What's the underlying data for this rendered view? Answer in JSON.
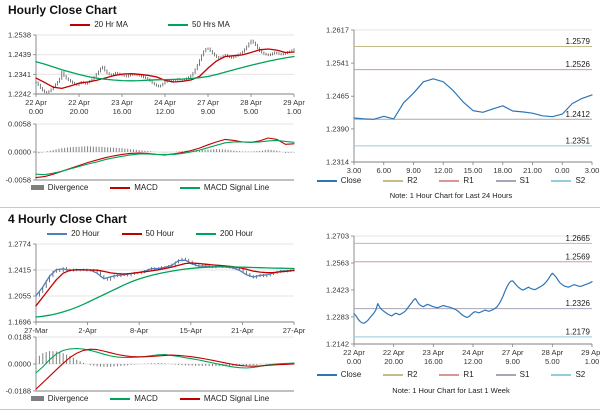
{
  "titles": {
    "section1": "Hourly Close Chart",
    "section2": "4 Hourly Close Chart"
  },
  "colors": {
    "close_line": "#2E75B6",
    "ma_red": "#C00000",
    "ma_green": "#00A359",
    "ma_blue": "#4F81BD",
    "candle": "#404040",
    "divergence": "#7F7F7F",
    "r2": "#C4BD8B",
    "r1": "#D99694",
    "s1": "#A6A6B8",
    "s2": "#92CDDC",
    "grid": "#DCDCDC",
    "axis": "#808080",
    "tick_text": "#333333"
  },
  "chart_data": [
    {
      "id": "hourly_close",
      "type": "candlestick+line",
      "title": "Hourly Close Chart",
      "legend": [
        "20 Hr MA",
        "50 Hrs MA"
      ],
      "x_dates": [
        "22 Apr",
        "22 Apr",
        "23 Apr",
        "24 Apr",
        "27 Apr",
        "28 Apr",
        "29 Apr"
      ],
      "x_times": [
        "0.00",
        "20.00",
        "16.00",
        "12.00",
        "9.00",
        "5.00",
        "1.00"
      ],
      "price_panel": {
        "ylim": [
          1.2242,
          1.2538
        ],
        "yticks": [
          1.2538,
          1.2439,
          1.2341,
          1.2242
        ],
        "close": [
          1.23,
          1.2288,
          1.2272,
          1.226,
          1.2252,
          1.225,
          1.2256,
          1.2265,
          1.2278,
          1.229,
          1.2302,
          1.2318,
          1.2352,
          1.2332,
          1.232,
          1.2312,
          1.2305,
          1.2298,
          1.2292,
          1.2288,
          1.2295,
          1.2302,
          1.2298,
          1.2294,
          1.23,
          1.2306,
          1.2315,
          1.2328,
          1.2342,
          1.2355,
          1.237,
          1.2378,
          1.236,
          1.2346,
          1.234,
          1.2336,
          1.2342,
          1.2348,
          1.2344,
          1.234,
          1.2336,
          1.2333,
          1.233,
          1.2334,
          1.2338,
          1.2342,
          1.2339,
          1.2336,
          1.2334,
          1.233,
          1.2326,
          1.2322,
          1.2316,
          1.2308,
          1.2298,
          1.229,
          1.2284,
          1.228,
          1.2285,
          1.2294,
          1.2304,
          1.231,
          1.2307,
          1.2304,
          1.2308,
          1.2313,
          1.2318,
          1.2315,
          1.2312,
          1.2316,
          1.232,
          1.2326,
          1.2334,
          1.2348,
          1.2366,
          1.2388,
          1.2412,
          1.2436,
          1.2456,
          1.2468,
          1.247,
          1.2458,
          1.2446,
          1.2436,
          1.2428,
          1.2422,
          1.2426,
          1.2432,
          1.2437,
          1.2431,
          1.2427,
          1.2424,
          1.2428,
          1.2434,
          1.244,
          1.2446,
          1.2454,
          1.2466,
          1.248,
          1.2496,
          1.251,
          1.25,
          1.2488,
          1.2472,
          1.2458,
          1.245,
          1.2444,
          1.244,
          1.2437,
          1.2441,
          1.2446,
          1.245,
          1.2447,
          1.2444,
          1.2441,
          1.2444,
          1.2448,
          1.2452,
          1.2455,
          1.246,
          1.2466
        ],
        "series": [
          {
            "name": "20 Hr MA",
            "color": "ma_red",
            "values": [
              1.2322,
              1.23,
              1.2276,
              1.227,
              1.2282,
              1.2296,
              1.2302,
              1.231,
              1.2322,
              1.2334,
              1.2342,
              1.2344,
              1.2341,
              1.2336,
              1.2328,
              1.231,
              1.2302,
              1.2305,
              1.2312,
              1.233,
              1.2372,
              1.2408,
              1.243,
              1.2434,
              1.2438,
              1.245,
              1.2464,
              1.2468,
              1.2462,
              1.245,
              1.2452
            ]
          },
          {
            "name": "50 Hrs MA",
            "color": "ma_green",
            "values": [
              1.2404,
              1.2392,
              1.2378,
              1.2364,
              1.2352,
              1.234,
              1.233,
              1.2322,
              1.2316,
              1.2312,
              1.2309,
              1.2308,
              1.2309,
              1.2311,
              1.2313,
              1.2314,
              1.2315,
              1.2317,
              1.232,
              1.2324,
              1.233,
              1.234,
              1.2352,
              1.2364,
              1.2375,
              1.2386,
              1.2396,
              1.2406,
              1.2415,
              1.2423,
              1.243
            ]
          }
        ]
      },
      "macd_panel": {
        "ylim": [
          -0.0058,
          0.0058
        ],
        "yticks": [
          0.0058,
          0,
          -0.0058
        ],
        "legend": [
          "Divergence",
          "MACD",
          "MACD Signal Line"
        ],
        "divergence": [
          -0.0004,
          0.0,
          0.0004,
          0.0008,
          0.001,
          0.0011,
          0.0012,
          0.0011,
          0.001,
          0.0009,
          0.0008,
          0.0006,
          0.0004,
          0.0002,
          0.0,
          -0.0001,
          0.0,
          0.0002,
          0.0003,
          0.0004,
          0.0005,
          0.0006,
          0.0005,
          0.0003,
          0.0001,
          0.0001,
          0.0002,
          0.0005,
          0.0003,
          -0.0002,
          -0.0001
        ],
        "series": [
          {
            "name": "MACD",
            "color": "ma_red",
            "values": [
              -0.0053,
              -0.0051,
              -0.0046,
              -0.004,
              -0.0034,
              -0.0028,
              -0.0022,
              -0.0017,
              -0.0012,
              -0.0008,
              -0.0005,
              -0.0003,
              -0.0002,
              -0.0003,
              -0.0005,
              -0.0006,
              -0.0004,
              -0.0001,
              0.0003,
              0.0008,
              0.0015,
              0.0021,
              0.0026,
              0.0024,
              0.0021,
              0.002,
              0.0023,
              0.0029,
              0.0026,
              0.0016,
              0.0017
            ]
          },
          {
            "name": "MACD Signal Line",
            "color": "ma_green",
            "values": [
              -0.0046,
              -0.0047,
              -0.0044,
              -0.004,
              -0.0035,
              -0.003,
              -0.0025,
              -0.0021,
              -0.0016,
              -0.0012,
              -0.0009,
              -0.0006,
              -0.0004,
              -0.0004,
              -0.0005,
              -0.0005,
              -0.0005,
              -0.0003,
              0.0,
              0.0004,
              0.0009,
              0.0014,
              0.0019,
              0.0021,
              0.0021,
              0.002,
              0.0021,
              0.0023,
              0.0024,
              0.0022,
              0.002
            ]
          }
        ]
      }
    },
    {
      "id": "pivot_24h",
      "type": "line",
      "note": "Note: 1 Hour Chart for Last 24 Hours",
      "ylim": [
        1.2314,
        1.2617
      ],
      "yticks": [
        1.2617,
        1.2541,
        1.2465,
        1.239,
        1.2314
      ],
      "x_labels": [
        "3.00",
        "6.00",
        "9.00",
        "12.00",
        "15.00",
        "18.00",
        "21.00",
        "0.00",
        "3.00"
      ],
      "legend": [
        "Close",
        "R2",
        "R1",
        "S1",
        "S2"
      ],
      "close": [
        1.2415,
        1.2413,
        1.2412,
        1.2419,
        1.2413,
        1.245,
        1.2472,
        1.2498,
        1.2505,
        1.2498,
        1.2478,
        1.2452,
        1.2432,
        1.2428,
        1.2436,
        1.2443,
        1.2431,
        1.2429,
        1.2426,
        1.242,
        1.2418,
        1.2424,
        1.2448,
        1.246,
        1.2468
      ],
      "pivots": [
        {
          "name": "R2",
          "value": 1.2579,
          "color": "r2"
        },
        {
          "name": "R1",
          "value": 1.2526,
          "color": "r1"
        },
        {
          "name": "S1",
          "value": 1.2412,
          "color": "s1"
        },
        {
          "name": "S2",
          "value": 1.2351,
          "color": "s2"
        }
      ]
    },
    {
      "id": "four_hourly_close",
      "type": "candlestick+line",
      "title": "4 Hourly Close Chart",
      "legend": [
        "20 Hour",
        "50 Hour",
        "200 Hour"
      ],
      "x_labels": [
        "27-Mar",
        "2-Apr",
        "8-Apr",
        "15-Apr",
        "21-Apr",
        "27-Apr"
      ],
      "price_panel": {
        "ylim": [
          1.1696,
          1.2774
        ],
        "yticks": [
          1.2774,
          1.2415,
          1.2055,
          1.1696
        ],
        "close": [
          1.206,
          1.211,
          1.218,
          1.226,
          1.233,
          1.239,
          1.242,
          1.24,
          1.244,
          1.242,
          1.2405,
          1.242,
          1.241,
          1.2415,
          1.242,
          1.2408,
          1.2415,
          1.2412,
          1.238,
          1.233,
          1.23,
          1.228,
          1.231,
          1.234,
          1.233,
          1.2345,
          1.2355,
          1.234,
          1.236,
          1.2375,
          1.237,
          1.2385,
          1.24,
          1.242,
          1.244,
          1.2425,
          1.244,
          1.2455,
          1.245,
          1.247,
          1.249,
          1.252,
          1.255,
          1.257,
          1.2555,
          1.253,
          1.25,
          1.248,
          1.246,
          1.2475,
          1.247,
          1.246,
          1.2455,
          1.247,
          1.2465,
          1.2455,
          1.246,
          1.245,
          1.244,
          1.2445,
          1.242,
          1.239,
          1.236,
          1.233,
          1.231,
          1.233,
          1.2345,
          1.233,
          1.234,
          1.236,
          1.2375,
          1.239,
          1.24,
          1.2395,
          1.2405,
          1.241,
          1.2415
        ],
        "series": [
          {
            "name": "20 Hour",
            "color": "ma_blue",
            "values": [
              1.206,
              1.218,
              1.233,
              1.242,
              1.243,
              1.241,
              1.2415,
              1.2415,
              1.2414,
              1.237,
              1.2295,
              1.232,
              1.234,
              1.235,
              1.2365,
              1.2378,
              1.2398,
              1.2432,
              1.2436,
              1.2452,
              1.2478,
              1.2545,
              1.255,
              1.2498,
              1.2468,
              1.247,
              1.2458,
              1.2466,
              1.2456,
              1.2443,
              1.2408,
              1.2348,
              1.2318,
              1.234,
              1.2348,
              1.2372,
              1.2398,
              1.2404,
              1.2414
            ]
          },
          {
            "name": "50 Hour",
            "color": "ma_red",
            "values": [
              1.192,
              1.204,
              1.216,
              1.228,
              1.237,
              1.241,
              1.242,
              1.2418,
              1.2415,
              1.2412,
              1.2395,
              1.2375,
              1.2365,
              1.236,
              1.2368,
              1.238,
              1.239,
              1.2402,
              1.2418,
              1.2435,
              1.2455,
              1.248,
              1.2505,
              1.2512,
              1.2505,
              1.2495,
              1.2485,
              1.2478,
              1.247,
              1.246,
              1.2445,
              1.2425,
              1.24,
              1.2385,
              1.2378,
              1.238,
              1.2388,
              1.2398,
              1.2408
            ]
          },
          {
            "name": "200 Hour",
            "color": "ma_green",
            "values": [
              1.1765,
              1.1775,
              1.179,
              1.181,
              1.1835,
              1.1865,
              1.19,
              1.194,
              1.1985,
              1.203,
              1.2075,
              1.212,
              1.2165,
              1.221,
              1.225,
              1.2285,
              1.2315,
              1.234,
              1.2362,
              1.2382,
              1.24,
              1.2415,
              1.2428,
              1.2438,
              1.2446,
              1.2452,
              1.2456,
              1.2458,
              1.2458,
              1.2457,
              1.2455,
              1.2452,
              1.2449,
              1.2446,
              1.2443,
              1.2441,
              1.2439,
              1.2437,
              1.2436
            ]
          }
        ]
      },
      "macd_panel": {
        "ylim": [
          -0.0188,
          0.0188
        ],
        "yticks": [
          0.0188,
          0,
          -0.0188
        ],
        "legend": [
          "Divergence",
          "MACD",
          "MACD Signal Line"
        ],
        "divergence": [
          0.004,
          0.0075,
          0.009,
          0.0088,
          0.0075,
          0.0055,
          0.003,
          0.0008,
          -0.0008,
          -0.0016,
          -0.002,
          -0.002,
          -0.0016,
          -0.0012,
          -0.0006,
          -0.0002,
          0.0002,
          0.0005,
          0.0007,
          0.0005,
          -0.0002,
          -0.0007,
          -0.001,
          -0.0012,
          -0.0013,
          -0.0014,
          -0.0015,
          -0.0015,
          -0.0015,
          -0.0014,
          -0.0013,
          -0.0012,
          -0.0008,
          -0.0003,
          0.0002,
          0.0004,
          0.0005,
          0.0005,
          0.0004
        ],
        "series": [
          {
            "name": "MACD",
            "color": "ma_green",
            "values": [
              -0.0062,
              -0.002,
              0.003,
              0.007,
              0.0095,
              0.0105,
              0.0108,
              0.0104,
              0.0095,
              0.0082,
              0.0068,
              0.0056,
              0.0048,
              0.0045,
              0.0046,
              0.0048,
              0.0052,
              0.0058,
              0.0064,
              0.0066,
              0.006,
              0.0052,
              0.0044,
              0.0036,
              0.0028,
              0.0018,
              0.0008,
              -0.0002,
              -0.0012,
              -0.002,
              -0.0026,
              -0.0028,
              -0.0024,
              -0.0016,
              -0.0008,
              -0.0002,
              0.0002,
              0.0004,
              0.0006
            ]
          },
          {
            "name": "MACD Signal Line",
            "color": "ma_red",
            "values": [
              -0.0175,
              -0.013,
              -0.0085,
              -0.004,
              0.0005,
              0.0045,
              0.0075,
              0.0095,
              0.0103,
              0.01,
              0.009,
              0.0078,
              0.0066,
              0.0058,
              0.0052,
              0.005,
              0.005,
              0.0052,
              0.0056,
              0.006,
              0.0062,
              0.006,
              0.0056,
              0.005,
              0.0043,
              0.0035,
              0.0026,
              0.0016,
              0.0006,
              -0.0003,
              -0.001,
              -0.0014,
              -0.0015,
              -0.0013,
              -0.001,
              -0.0007,
              -0.0004,
              -0.0002,
              0.0
            ]
          }
        ]
      }
    },
    {
      "id": "pivot_1week",
      "type": "line",
      "note": "Note: 1 Hour Chart for Last 1 Week",
      "ylim": [
        1.2142,
        1.2703
      ],
      "yticks": [
        1.2703,
        1.2563,
        1.2423,
        1.2283,
        1.2142
      ],
      "x_dates": [
        "22 Apr",
        "22 Apr",
        "23 Apr",
        "24 Apr",
        "27 Apr",
        "28 Apr",
        "29 Apr"
      ],
      "x_times": [
        "0.00",
        "20.00",
        "16.00",
        "12.00",
        "9.00",
        "5.00",
        "1.00"
      ],
      "legend": [
        "Close",
        "R2",
        "R1",
        "S1",
        "S2"
      ],
      "close_source": "same series as Hourly Close Chart close values",
      "pivots": [
        {
          "name": "R2",
          "value": 1.2665,
          "color": "r2"
        },
        {
          "name": "R1",
          "value": 1.2569,
          "color": "r1"
        },
        {
          "name": "S1",
          "value": 1.2326,
          "color": "s1"
        },
        {
          "name": "S2",
          "value": 1.2179,
          "color": "s2"
        }
      ]
    }
  ]
}
